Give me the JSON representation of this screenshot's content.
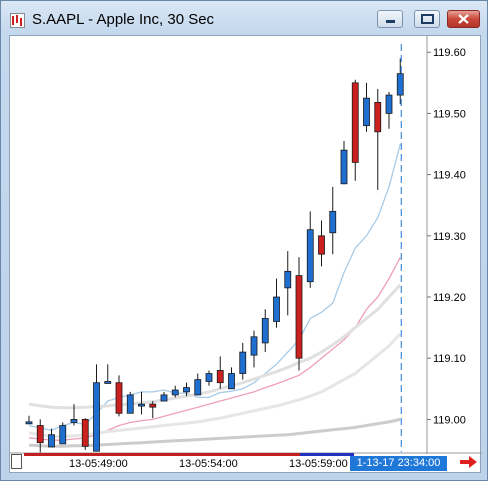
{
  "window": {
    "title": "S.AAPL - Apple Inc, 30 Sec",
    "buttons": [
      "minimize",
      "restore",
      "close"
    ]
  },
  "price_axis": {
    "ticks": [
      "119.60",
      "119.50",
      "119.40",
      "119.30",
      "119.20",
      "119.10",
      "119.00"
    ]
  },
  "time_axis": {
    "labels": [
      "13-05:49:00",
      "13-05:54:00",
      "13-05:59:00"
    ],
    "current_time": "1-13-17 23:34:00"
  },
  "chart_data": {
    "type": "candlestick",
    "ylim": [
      118.95,
      119.62
    ],
    "grid": false,
    "up_color": "#1f6fd1",
    "down_color": "#cc1f1f",
    "candles": [
      {
        "o": 118.996,
        "h": 119.006,
        "l": 118.992,
        "c": 118.996
      },
      {
        "o": 118.99,
        "h": 119.0,
        "l": 118.946,
        "c": 118.962
      },
      {
        "o": 118.955,
        "h": 118.985,
        "l": 118.955,
        "c": 118.975
      },
      {
        "o": 118.96,
        "h": 118.995,
        "l": 118.96,
        "c": 118.99
      },
      {
        "o": 118.995,
        "h": 119.025,
        "l": 118.99,
        "c": 119.0
      },
      {
        "o": 119.0,
        "h": 119.002,
        "l": 118.95,
        "c": 118.956
      },
      {
        "o": 118.948,
        "h": 119.09,
        "l": 118.948,
        "c": 119.06
      },
      {
        "o": 119.06,
        "h": 119.09,
        "l": 119.06,
        "c": 119.062
      },
      {
        "o": 119.06,
        "h": 119.072,
        "l": 119.005,
        "c": 119.01
      },
      {
        "o": 119.01,
        "h": 119.045,
        "l": 119.01,
        "c": 119.04
      },
      {
        "o": 119.022,
        "h": 119.045,
        "l": 119.008,
        "c": 119.025
      },
      {
        "o": 119.025,
        "h": 119.03,
        "l": 119.002,
        "c": 119.02
      },
      {
        "o": 119.03,
        "h": 119.045,
        "l": 119.03,
        "c": 119.04
      },
      {
        "o": 119.04,
        "h": 119.055,
        "l": 119.036,
        "c": 119.048
      },
      {
        "o": 119.045,
        "h": 119.06,
        "l": 119.038,
        "c": 119.052
      },
      {
        "o": 119.04,
        "h": 119.075,
        "l": 119.04,
        "c": 119.065
      },
      {
        "o": 119.062,
        "h": 119.08,
        "l": 119.055,
        "c": 119.075
      },
      {
        "o": 119.08,
        "h": 119.103,
        "l": 119.05,
        "c": 119.06
      },
      {
        "o": 119.05,
        "h": 119.085,
        "l": 119.05,
        "c": 119.075
      },
      {
        "o": 119.075,
        "h": 119.125,
        "l": 119.065,
        "c": 119.11
      },
      {
        "o": 119.105,
        "h": 119.145,
        "l": 119.085,
        "c": 119.135
      },
      {
        "o": 119.125,
        "h": 119.18,
        "l": 119.11,
        "c": 119.165
      },
      {
        "o": 119.16,
        "h": 119.23,
        "l": 119.15,
        "c": 119.2
      },
      {
        "o": 119.215,
        "h": 119.275,
        "l": 119.17,
        "c": 119.242
      },
      {
        "o": 119.235,
        "h": 119.265,
        "l": 119.08,
        "c": 119.1
      },
      {
        "o": 119.225,
        "h": 119.34,
        "l": 119.215,
        "c": 119.31
      },
      {
        "o": 119.3,
        "h": 119.325,
        "l": 119.25,
        "c": 119.27
      },
      {
        "o": 119.305,
        "h": 119.38,
        "l": 119.27,
        "c": 119.34
      },
      {
        "o": 119.385,
        "h": 119.455,
        "l": 119.39,
        "c": 119.44
      },
      {
        "o": 119.55,
        "h": 119.555,
        "l": 119.39,
        "c": 119.42
      },
      {
        "o": 119.48,
        "h": 119.55,
        "l": 119.47,
        "c": 119.525
      },
      {
        "o": 119.518,
        "h": 119.54,
        "l": 119.375,
        "c": 119.47
      },
      {
        "o": 119.5,
        "h": 119.535,
        "l": 119.475,
        "c": 119.53
      },
      {
        "o": 119.53,
        "h": 119.59,
        "l": 119.515,
        "c": 119.565
      }
    ],
    "series": [
      {
        "color": "#a7cbea",
        "values": [
          118.99,
          118.986,
          118.982,
          118.99,
          118.995,
          118.992,
          119.01,
          119.03,
          119.036,
          119.04,
          119.045,
          119.045,
          119.048,
          119.043,
          119.043,
          119.036,
          119.036,
          119.044,
          119.046,
          119.05,
          119.06,
          119.075,
          119.09,
          119.11,
          119.13,
          119.165,
          119.175,
          119.19,
          119.24,
          119.28,
          119.3,
          119.33,
          119.38,
          119.45
        ]
      },
      {
        "color": "#ee9fb6",
        "values": [
          118.97,
          118.968,
          118.966,
          118.966,
          118.968,
          118.97,
          118.975,
          118.982,
          118.99,
          118.995,
          118.998,
          119.0,
          119.005,
          119.01,
          119.015,
          119.02,
          119.025,
          119.03,
          119.035,
          119.04,
          119.045,
          119.052,
          119.058,
          119.065,
          119.072,
          119.085,
          119.1,
          119.115,
          119.13,
          119.15,
          119.18,
          119.2,
          119.23,
          119.265
        ]
      },
      {
        "color": "#e0e0e0",
        "values": [
          119.025,
          119.022,
          119.02,
          119.019,
          119.019,
          119.02,
          119.021,
          119.022,
          119.024,
          119.025,
          119.027,
          119.029,
          119.032,
          119.035,
          119.038,
          119.041,
          119.045,
          119.05,
          119.055,
          119.06,
          119.066,
          119.072,
          119.078,
          119.085,
          119.093,
          119.1,
          119.11,
          119.122,
          119.135,
          119.15,
          119.165,
          119.18,
          119.2,
          119.22
        ]
      },
      {
        "color": "#e6e6e6",
        "values": [
          118.978,
          118.975,
          118.972,
          118.972,
          118.973,
          118.975,
          118.977,
          118.98,
          118.982,
          118.984,
          118.986,
          118.988,
          118.99,
          118.992,
          118.994,
          118.996,
          118.999,
          119.002,
          119.006,
          119.01,
          119.014,
          119.018,
          119.022,
          119.027,
          119.032,
          119.038,
          119.045,
          119.055,
          119.065,
          119.075,
          119.09,
          119.105,
          119.12,
          119.14
        ]
      },
      {
        "color": "#cccccc",
        "values": [
          118.958,
          118.957,
          118.956,
          118.956,
          118.957,
          118.957,
          118.958,
          118.959,
          118.96,
          118.961,
          118.962,
          118.963,
          118.964,
          118.965,
          118.966,
          118.967,
          118.968,
          118.969,
          118.97,
          118.971,
          118.972,
          118.973,
          118.974,
          118.975,
          118.977,
          118.979,
          118.981,
          118.983,
          118.985,
          118.987,
          118.99,
          118.993,
          118.996,
          119.0
        ]
      }
    ]
  }
}
